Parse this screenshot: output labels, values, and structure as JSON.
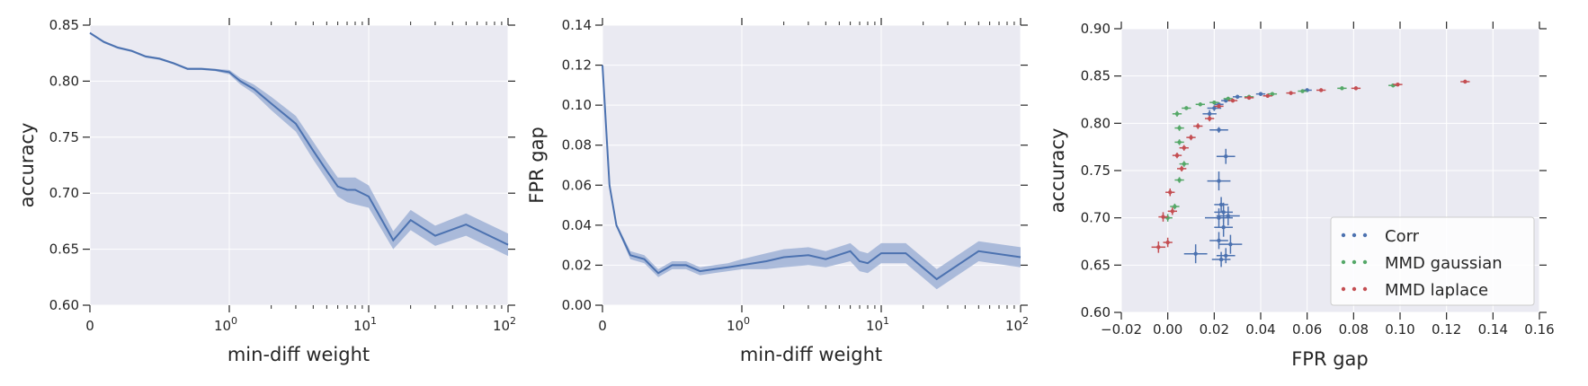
{
  "colors": {
    "background": "#ffffff",
    "plot_bg": "#eaeaf2",
    "grid": "#ffffff",
    "line": "#4c72b0",
    "band": "#9fb2d6",
    "corr": "#4c72b0",
    "mmd_gaussian": "#55a868",
    "mmd_laplace": "#c44e52",
    "tick": "#262626"
  },
  "chart_data": [
    {
      "type": "line",
      "xscale": "symlog",
      "ylabel": "accuracy",
      "xlabel": "min-diff weight",
      "xlim": [
        0,
        100
      ],
      "ylim": [
        0.6,
        0.85
      ],
      "grid": true,
      "xticks": [
        {
          "value": 0,
          "label": "0"
        },
        {
          "value": 1,
          "label": "10",
          "exp": "0"
        },
        {
          "value": 10,
          "label": "10",
          "exp": "1"
        },
        {
          "value": 100,
          "label": "10",
          "exp": "2"
        }
      ],
      "yticks": [
        "0.60",
        "0.65",
        "0.70",
        "0.75",
        "0.80",
        "0.85"
      ],
      "series": [
        {
          "x": [
            0,
            0.1,
            0.2,
            0.3,
            0.4,
            0.5,
            0.6,
            0.7,
            0.8,
            0.9,
            1,
            1.2,
            1.5,
            2,
            3,
            4,
            5,
            6,
            7,
            8,
            10,
            15,
            20,
            30,
            50,
            100
          ],
          "y": [
            0.843,
            0.835,
            0.83,
            0.827,
            0.822,
            0.82,
            0.816,
            0.811,
            0.811,
            0.81,
            0.808,
            0.8,
            0.793,
            0.78,
            0.762,
            0.738,
            0.72,
            0.706,
            0.703,
            0.703,
            0.697,
            0.658,
            0.676,
            0.662,
            0.672,
            0.654
          ],
          "lower": [
            0.842,
            0.834,
            0.829,
            0.826,
            0.821,
            0.819,
            0.815,
            0.81,
            0.81,
            0.809,
            0.806,
            0.797,
            0.789,
            0.774,
            0.755,
            0.73,
            0.712,
            0.697,
            0.692,
            0.69,
            0.687,
            0.65,
            0.667,
            0.653,
            0.662,
            0.644
          ],
          "upper": [
            0.844,
            0.836,
            0.831,
            0.828,
            0.823,
            0.821,
            0.817,
            0.812,
            0.812,
            0.811,
            0.81,
            0.803,
            0.797,
            0.786,
            0.769,
            0.746,
            0.728,
            0.714,
            0.714,
            0.714,
            0.707,
            0.666,
            0.685,
            0.671,
            0.682,
            0.664
          ]
        }
      ]
    },
    {
      "type": "line",
      "xscale": "symlog",
      "ylabel": "FPR gap",
      "xlabel": "min-diff weight",
      "xlim": [
        0,
        100
      ],
      "ylim": [
        0,
        0.14
      ],
      "grid": true,
      "xticks": [
        {
          "value": 0,
          "label": "0"
        },
        {
          "value": 1,
          "label": "10",
          "exp": "0"
        },
        {
          "value": 10,
          "label": "10",
          "exp": "1"
        },
        {
          "value": 100,
          "label": "10",
          "exp": "2"
        }
      ],
      "yticks": [
        "0.00",
        "0.02",
        "0.04",
        "0.06",
        "0.08",
        "0.10",
        "0.12",
        "0.14"
      ],
      "series": [
        {
          "x": [
            0,
            0.05,
            0.1,
            0.2,
            0.3,
            0.4,
            0.5,
            0.6,
            0.7,
            0.8,
            0.9,
            1,
            1.5,
            2,
            3,
            4,
            6,
            7,
            8,
            10,
            15,
            25,
            50,
            100
          ],
          "y": [
            0.12,
            0.06,
            0.04,
            0.025,
            0.023,
            0.016,
            0.02,
            0.02,
            0.017,
            0.018,
            0.019,
            0.02,
            0.022,
            0.024,
            0.025,
            0.023,
            0.027,
            0.022,
            0.021,
            0.026,
            0.026,
            0.013,
            0.027,
            0.024
          ],
          "lower": [
            0.12,
            0.058,
            0.039,
            0.023,
            0.021,
            0.014,
            0.018,
            0.018,
            0.015,
            0.016,
            0.017,
            0.018,
            0.018,
            0.019,
            0.02,
            0.019,
            0.022,
            0.017,
            0.016,
            0.021,
            0.021,
            0.008,
            0.022,
            0.019
          ],
          "upper": [
            0.12,
            0.062,
            0.041,
            0.027,
            0.025,
            0.018,
            0.022,
            0.022,
            0.019,
            0.02,
            0.021,
            0.023,
            0.026,
            0.028,
            0.029,
            0.027,
            0.031,
            0.027,
            0.026,
            0.031,
            0.031,
            0.018,
            0.032,
            0.029
          ]
        }
      ]
    },
    {
      "type": "scatter",
      "ylabel": "accuracy",
      "xlabel": "FPR gap",
      "xlim": [
        -0.02,
        0.16
      ],
      "ylim": [
        0.6,
        0.9
      ],
      "grid": true,
      "xticks": [
        "−0.02",
        "0.00",
        "0.02",
        "0.04",
        "0.06",
        "0.08",
        "0.10",
        "0.12",
        "0.14",
        "0.16"
      ],
      "yticks": [
        "0.60",
        "0.65",
        "0.70",
        "0.75",
        "0.80",
        "0.85",
        "0.90"
      ],
      "legend": {
        "position": "lower-right",
        "entries": [
          "Corr",
          "MMD gaussian",
          "MMD laplace"
        ]
      },
      "series": [
        {
          "name": "Corr",
          "points": [
            {
              "x": 0.012,
              "y": 0.662,
              "xerr": 0.005,
              "yerr": 0.01
            },
            {
              "x": 0.023,
              "y": 0.656,
              "xerr": 0.004,
              "yerr": 0.008
            },
            {
              "x": 0.025,
              "y": 0.66,
              "xerr": 0.004,
              "yerr": 0.008
            },
            {
              "x": 0.027,
              "y": 0.672,
              "xerr": 0.005,
              "yerr": 0.01
            },
            {
              "x": 0.022,
              "y": 0.676,
              "xerr": 0.004,
              "yerr": 0.009
            },
            {
              "x": 0.024,
              "y": 0.69,
              "xerr": 0.004,
              "yerr": 0.01
            },
            {
              "x": 0.022,
              "y": 0.7,
              "xerr": 0.006,
              "yerr": 0.01
            },
            {
              "x": 0.026,
              "y": 0.702,
              "xerr": 0.005,
              "yerr": 0.01
            },
            {
              "x": 0.024,
              "y": 0.706,
              "xerr": 0.004,
              "yerr": 0.01
            },
            {
              "x": 0.023,
              "y": 0.714,
              "xerr": 0.003,
              "yerr": 0.008
            },
            {
              "x": 0.022,
              "y": 0.739,
              "xerr": 0.005,
              "yerr": 0.01
            },
            {
              "x": 0.025,
              "y": 0.765,
              "xerr": 0.004,
              "yerr": 0.008
            },
            {
              "x": 0.022,
              "y": 0.793,
              "xerr": 0.004,
              "yerr": 0.003
            },
            {
              "x": 0.018,
              "y": 0.81,
              "xerr": 0.003,
              "yerr": 0.004
            },
            {
              "x": 0.02,
              "y": 0.816,
              "xerr": 0.003,
              "yerr": 0.003
            },
            {
              "x": 0.022,
              "y": 0.82,
              "xerr": 0.002,
              "yerr": 0.002
            },
            {
              "x": 0.025,
              "y": 0.824,
              "xerr": 0.002,
              "yerr": 0.002
            },
            {
              "x": 0.03,
              "y": 0.828,
              "xerr": 0.002,
              "yerr": 0.002
            },
            {
              "x": 0.04,
              "y": 0.831,
              "xerr": 0.002,
              "yerr": 0.002
            },
            {
              "x": 0.06,
              "y": 0.835,
              "xerr": 0.002,
              "yerr": 0.002
            }
          ]
        },
        {
          "name": "MMD gaussian",
          "points": [
            {
              "x": 0.0,
              "y": 0.7,
              "xerr": 0.002,
              "yerr": 0.004
            },
            {
              "x": 0.003,
              "y": 0.712,
              "xerr": 0.002,
              "yerr": 0.003
            },
            {
              "x": 0.005,
              "y": 0.74,
              "xerr": 0.002,
              "yerr": 0.003
            },
            {
              "x": 0.007,
              "y": 0.757,
              "xerr": 0.002,
              "yerr": 0.003
            },
            {
              "x": 0.005,
              "y": 0.78,
              "xerr": 0.002,
              "yerr": 0.003
            },
            {
              "x": 0.005,
              "y": 0.795,
              "xerr": 0.002,
              "yerr": 0.003
            },
            {
              "x": 0.004,
              "y": 0.81,
              "xerr": 0.002,
              "yerr": 0.003
            },
            {
              "x": 0.008,
              "y": 0.816,
              "xerr": 0.002,
              "yerr": 0.002
            },
            {
              "x": 0.014,
              "y": 0.82,
              "xerr": 0.002,
              "yerr": 0.002
            },
            {
              "x": 0.02,
              "y": 0.822,
              "xerr": 0.002,
              "yerr": 0.002
            },
            {
              "x": 0.026,
              "y": 0.826,
              "xerr": 0.002,
              "yerr": 0.002
            },
            {
              "x": 0.035,
              "y": 0.828,
              "xerr": 0.002,
              "yerr": 0.002
            },
            {
              "x": 0.045,
              "y": 0.831,
              "xerr": 0.002,
              "yerr": 0.002
            },
            {
              "x": 0.058,
              "y": 0.834,
              "xerr": 0.002,
              "yerr": 0.002
            },
            {
              "x": 0.075,
              "y": 0.837,
              "xerr": 0.002,
              "yerr": 0.002
            },
            {
              "x": 0.097,
              "y": 0.84,
              "xerr": 0.002,
              "yerr": 0.002
            }
          ]
        },
        {
          "name": "MMD laplace",
          "points": [
            {
              "x": -0.004,
              "y": 0.669,
              "xerr": 0.003,
              "yerr": 0.006
            },
            {
              "x": 0.0,
              "y": 0.674,
              "xerr": 0.002,
              "yerr": 0.005
            },
            {
              "x": -0.002,
              "y": 0.701,
              "xerr": 0.002,
              "yerr": 0.005
            },
            {
              "x": 0.002,
              "y": 0.707,
              "xerr": 0.002,
              "yerr": 0.004
            },
            {
              "x": 0.001,
              "y": 0.727,
              "xerr": 0.002,
              "yerr": 0.004
            },
            {
              "x": 0.006,
              "y": 0.752,
              "xerr": 0.002,
              "yerr": 0.003
            },
            {
              "x": 0.004,
              "y": 0.766,
              "xerr": 0.002,
              "yerr": 0.003
            },
            {
              "x": 0.007,
              "y": 0.774,
              "xerr": 0.002,
              "yerr": 0.003
            },
            {
              "x": 0.01,
              "y": 0.785,
              "xerr": 0.002,
              "yerr": 0.003
            },
            {
              "x": 0.013,
              "y": 0.797,
              "xerr": 0.002,
              "yerr": 0.003
            },
            {
              "x": 0.018,
              "y": 0.805,
              "xerr": 0.002,
              "yerr": 0.003
            },
            {
              "x": 0.022,
              "y": 0.818,
              "xerr": 0.002,
              "yerr": 0.002
            },
            {
              "x": 0.028,
              "y": 0.824,
              "xerr": 0.002,
              "yerr": 0.002
            },
            {
              "x": 0.035,
              "y": 0.827,
              "xerr": 0.002,
              "yerr": 0.002
            },
            {
              "x": 0.043,
              "y": 0.829,
              "xerr": 0.002,
              "yerr": 0.002
            },
            {
              "x": 0.053,
              "y": 0.832,
              "xerr": 0.002,
              "yerr": 0.002
            },
            {
              "x": 0.066,
              "y": 0.835,
              "xerr": 0.002,
              "yerr": 0.002
            },
            {
              "x": 0.081,
              "y": 0.837,
              "xerr": 0.002,
              "yerr": 0.002
            },
            {
              "x": 0.099,
              "y": 0.841,
              "xerr": 0.002,
              "yerr": 0.002
            },
            {
              "x": 0.128,
              "y": 0.844,
              "xerr": 0.002,
              "yerr": 0.002
            }
          ]
        }
      ]
    }
  ]
}
